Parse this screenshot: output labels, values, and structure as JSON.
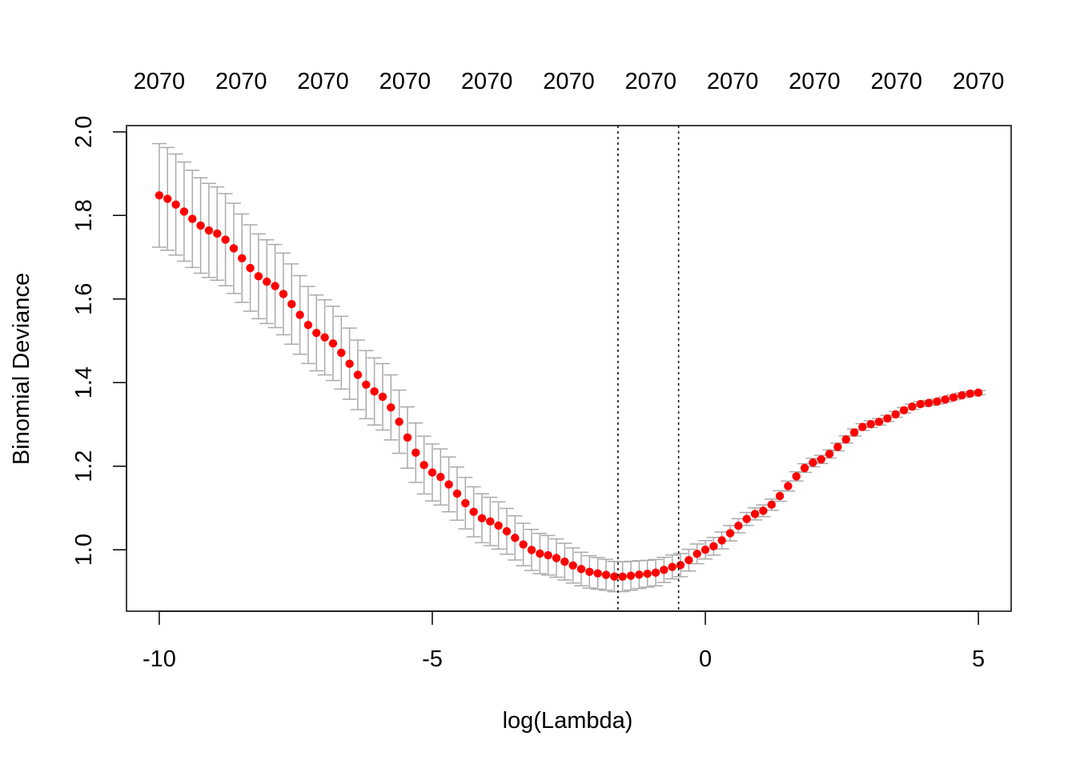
{
  "chart_data": {
    "type": "scatter",
    "xlabel": "log(Lambda)",
    "ylabel": "Binomial Deviance",
    "xlim": [
      -10.6,
      5.6
    ],
    "ylim": [
      0.853,
      2.015
    ],
    "x_ticks": [
      -10,
      -5,
      0,
      5
    ],
    "x_tick_labels": [
      "-10",
      "-5",
      "0",
      "5"
    ],
    "y_ticks": [
      1.0,
      1.2,
      1.4,
      1.6,
      1.8,
      2.0
    ],
    "y_tick_labels": [
      "1.0",
      "1.2",
      "1.4",
      "1.6",
      "1.8",
      "2.0"
    ],
    "top_axis": {
      "ticks": [
        -10,
        -8.5,
        -7,
        -5.5,
        -4,
        -2.5,
        -1,
        0.5,
        2,
        3.5,
        5
      ],
      "labels": [
        "2070",
        "2070",
        "2070",
        "2070",
        "2070",
        "2070",
        "2070",
        "2070",
        "2070",
        "2070",
        "2070"
      ]
    },
    "vlines": [
      -1.6,
      -0.49
    ],
    "grid": false,
    "series": [
      {
        "color": "#ff0000",
        "error_bar_color": "#aaaaaa",
        "x_range": [
          -10,
          5
        ],
        "n_points": 100,
        "curve_knots": [
          {
            "x": -10,
            "y": 1.848,
            "se": 0.124
          },
          {
            "x": -9,
            "y": 1.76,
            "se": 0.112
          },
          {
            "x": -8,
            "y": 1.64,
            "se": 0.1
          },
          {
            "x": -7,
            "y": 1.51,
            "se": 0.09
          },
          {
            "x": -6,
            "y": 1.375,
            "se": 0.08
          },
          {
            "x": -5,
            "y": 1.185,
            "se": 0.068
          },
          {
            "x": -4,
            "y": 1.07,
            "se": 0.058
          },
          {
            "x": -3,
            "y": 0.99,
            "se": 0.048
          },
          {
            "x": -2,
            "y": 0.944,
            "se": 0.038
          },
          {
            "x": -1.6,
            "y": 0.935,
            "se": 0.036
          },
          {
            "x": -1,
            "y": 0.943,
            "se": 0.032
          },
          {
            "x": -0.49,
            "y": 0.962,
            "se": 0.028
          },
          {
            "x": 0,
            "y": 1.0,
            "se": 0.022
          },
          {
            "x": 1,
            "y": 1.09,
            "se": 0.014
          },
          {
            "x": 2,
            "y": 1.21,
            "se": 0.01
          },
          {
            "x": 3,
            "y": 1.3,
            "se": 0.008
          },
          {
            "x": 4,
            "y": 1.35,
            "se": 0.006
          },
          {
            "x": 5,
            "y": 1.376,
            "se": 0.005
          }
        ]
      }
    ]
  }
}
